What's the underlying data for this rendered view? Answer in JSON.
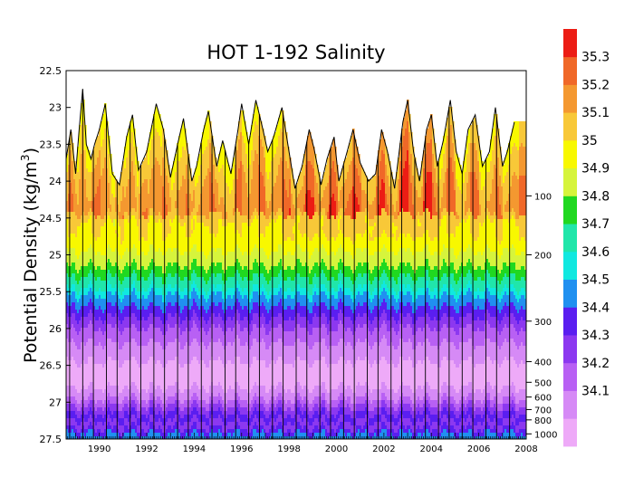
{
  "chart_data": {
    "type": "heatmap",
    "title": "HOT 1-192 Salinity",
    "ylabel_main": "Potential Density (kg/m",
    "ylabel_sup": "3",
    "ylabel_close": ")",
    "x_range": [
      1988.6,
      2008.0
    ],
    "y_range": [
      22.5,
      27.5
    ],
    "y_inverted": true,
    "x_ticks": [
      "1990",
      "1992",
      "1994",
      "1996",
      "1998",
      "2000",
      "2002",
      "2004",
      "2006",
      "2008"
    ],
    "y_ticks": [
      "22.5",
      "23",
      "23.5",
      "24",
      "24.5",
      "25",
      "25.5",
      "26",
      "26.5",
      "27",
      "27.5"
    ],
    "right_depth_ticks": [
      {
        "label": "100",
        "density": 24.2
      },
      {
        "label": "200",
        "density": 25.0
      },
      {
        "label": "300",
        "density": 25.9
      },
      {
        "label": "400",
        "density": 26.45
      },
      {
        "label": "500",
        "density": 26.73
      },
      {
        "label": "600",
        "density": 26.93
      },
      {
        "label": "700",
        "density": 27.1
      },
      {
        "label": "800",
        "density": 27.24
      },
      {
        "label": "1000",
        "density": 27.43
      }
    ],
    "colorbar": {
      "labels": [
        "34.1",
        "34.2",
        "34.3",
        "34.4",
        "34.5",
        "34.6",
        "34.7",
        "34.8",
        "34.9",
        "35",
        "35.1",
        "35.2",
        "35.3"
      ],
      "colors": [
        "#eeaaf8",
        "#d68af6",
        "#b860f4",
        "#8c38f0",
        "#5a1ef0",
        "#2090f0",
        "#10e8e0",
        "#20e6aa",
        "#20d820",
        "#d6f43c",
        "#f8f800",
        "#f8c838",
        "#f49830",
        "#f06828",
        "#ec1c14"
      ]
    },
    "surface_density": [
      [
        1988.6,
        23.7
      ],
      [
        1988.8,
        23.3
      ],
      [
        1989.0,
        23.9
      ],
      [
        1989.15,
        23.3
      ],
      [
        1989.3,
        22.75
      ],
      [
        1989.45,
        23.5
      ],
      [
        1989.65,
        23.7
      ],
      [
        1989.8,
        23.5
      ],
      [
        1990.0,
        23.3
      ],
      [
        1990.25,
        22.95
      ],
      [
        1990.55,
        23.9
      ],
      [
        1990.85,
        24.05
      ],
      [
        1991.15,
        23.4
      ],
      [
        1991.4,
        23.1
      ],
      [
        1991.65,
        23.85
      ],
      [
        1992.0,
        23.6
      ],
      [
        1992.4,
        22.95
      ],
      [
        1992.7,
        23.3
      ],
      [
        1993.0,
        23.95
      ],
      [
        1993.3,
        23.5
      ],
      [
        1993.55,
        23.15
      ],
      [
        1993.9,
        24.0
      ],
      [
        1994.1,
        23.8
      ],
      [
        1994.4,
        23.3
      ],
      [
        1994.6,
        23.05
      ],
      [
        1994.95,
        23.8
      ],
      [
        1995.2,
        23.45
      ],
      [
        1995.55,
        23.9
      ],
      [
        1995.85,
        23.3
      ],
      [
        1996.0,
        22.95
      ],
      [
        1996.3,
        23.5
      ],
      [
        1996.6,
        22.9
      ],
      [
        1996.9,
        23.3
      ],
      [
        1997.1,
        23.6
      ],
      [
        1997.35,
        23.4
      ],
      [
        1997.7,
        23.0
      ],
      [
        1998.0,
        23.6
      ],
      [
        1998.25,
        24.1
      ],
      [
        1998.55,
        23.8
      ],
      [
        1998.85,
        23.3
      ],
      [
        1999.05,
        23.55
      ],
      [
        1999.35,
        24.05
      ],
      [
        1999.6,
        23.7
      ],
      [
        1999.9,
        23.4
      ],
      [
        2000.1,
        24.0
      ],
      [
        2000.45,
        23.6
      ],
      [
        2000.7,
        23.3
      ],
      [
        2001.0,
        23.75
      ],
      [
        2001.35,
        24.0
      ],
      [
        2001.65,
        23.9
      ],
      [
        2001.9,
        23.3
      ],
      [
        2002.15,
        23.6
      ],
      [
        2002.45,
        24.1
      ],
      [
        2002.8,
        23.2
      ],
      [
        2003.0,
        22.9
      ],
      [
        2003.25,
        23.6
      ],
      [
        2003.5,
        24.0
      ],
      [
        2003.8,
        23.3
      ],
      [
        2004.0,
        23.1
      ],
      [
        2004.25,
        23.8
      ],
      [
        2004.5,
        23.45
      ],
      [
        2004.8,
        22.9
      ],
      [
        2005.05,
        23.6
      ],
      [
        2005.3,
        23.9
      ],
      [
        2005.55,
        23.3
      ],
      [
        2005.85,
        23.1
      ],
      [
        2006.15,
        23.8
      ],
      [
        2006.45,
        23.6
      ],
      [
        2006.7,
        23.0
      ],
      [
        2007.0,
        23.8
      ],
      [
        2007.2,
        23.6
      ],
      [
        2007.5,
        23.2
      ]
    ]
  }
}
